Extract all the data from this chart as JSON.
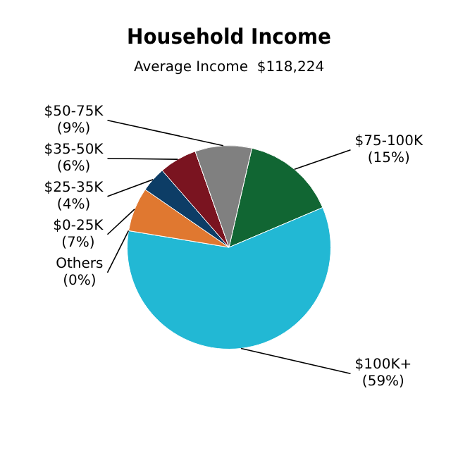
{
  "chart_data": {
    "type": "pie",
    "title": "Household Income",
    "subtitle": "Average Income  $118,224",
    "categories": [
      "$75-100K",
      "$100K+",
      "Others",
      "$0-25K",
      "$25-35K",
      "$35-50K",
      "$50-75K"
    ],
    "values": [
      15,
      59,
      0,
      7,
      4,
      6,
      9
    ],
    "value_labels": [
      "(15%)",
      "(59%)",
      "(0%)",
      "(7%)",
      "(4%)",
      "(6%)",
      "(9%)"
    ],
    "colors": [
      "#116633",
      "#22b8d4",
      "#999999",
      "#e07830",
      "#0d3d66",
      "#7a1420",
      "#808080"
    ]
  }
}
